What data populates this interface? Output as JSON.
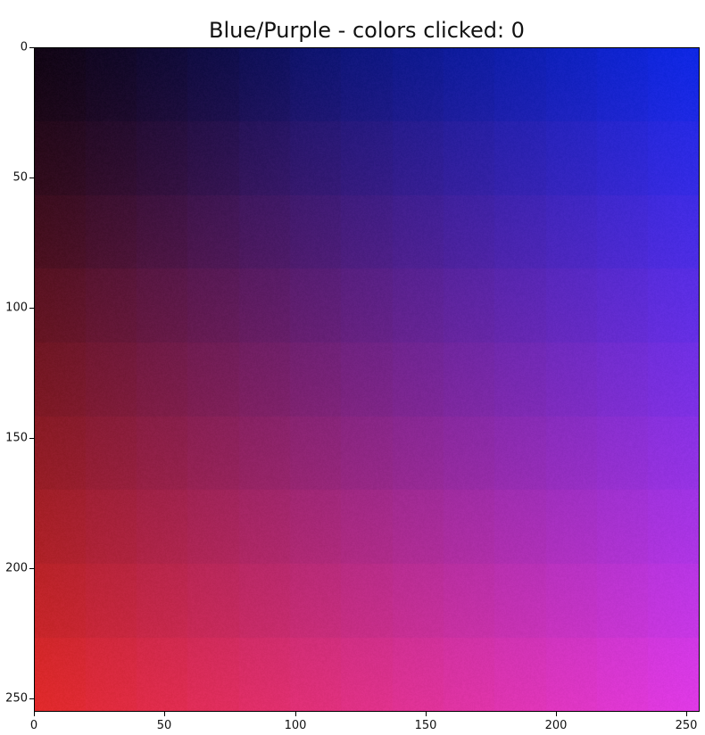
{
  "title_prefix": "Blue/Purple - colors clicked: ",
  "colors_clicked": 0,
  "chart_data": {
    "type": "heatmap",
    "title": "Blue/Purple - colors clicked: 0",
    "xlabel": "",
    "ylabel": "",
    "xlim": [
      0,
      255
    ],
    "ylim": [
      255,
      0
    ],
    "grid": false,
    "x_ticks": [
      0,
      50,
      100,
      150,
      200,
      250
    ],
    "y_ticks": [
      0,
      50,
      100,
      150,
      200,
      250
    ],
    "x_tick_labels": [
      "0",
      "50",
      "100",
      "150",
      "200",
      "250"
    ],
    "y_tick_labels": [
      "0",
      "50",
      "100",
      "150",
      "200",
      "250"
    ],
    "corner_colors": {
      "top_left": "#0a0518",
      "top_right": "#0a28e8",
      "bottom_left": "#e52a28",
      "bottom_right": "#e43ae8"
    },
    "dark_corner_color": "#1a0408",
    "block_rows": 9,
    "block_cols": 13
  }
}
